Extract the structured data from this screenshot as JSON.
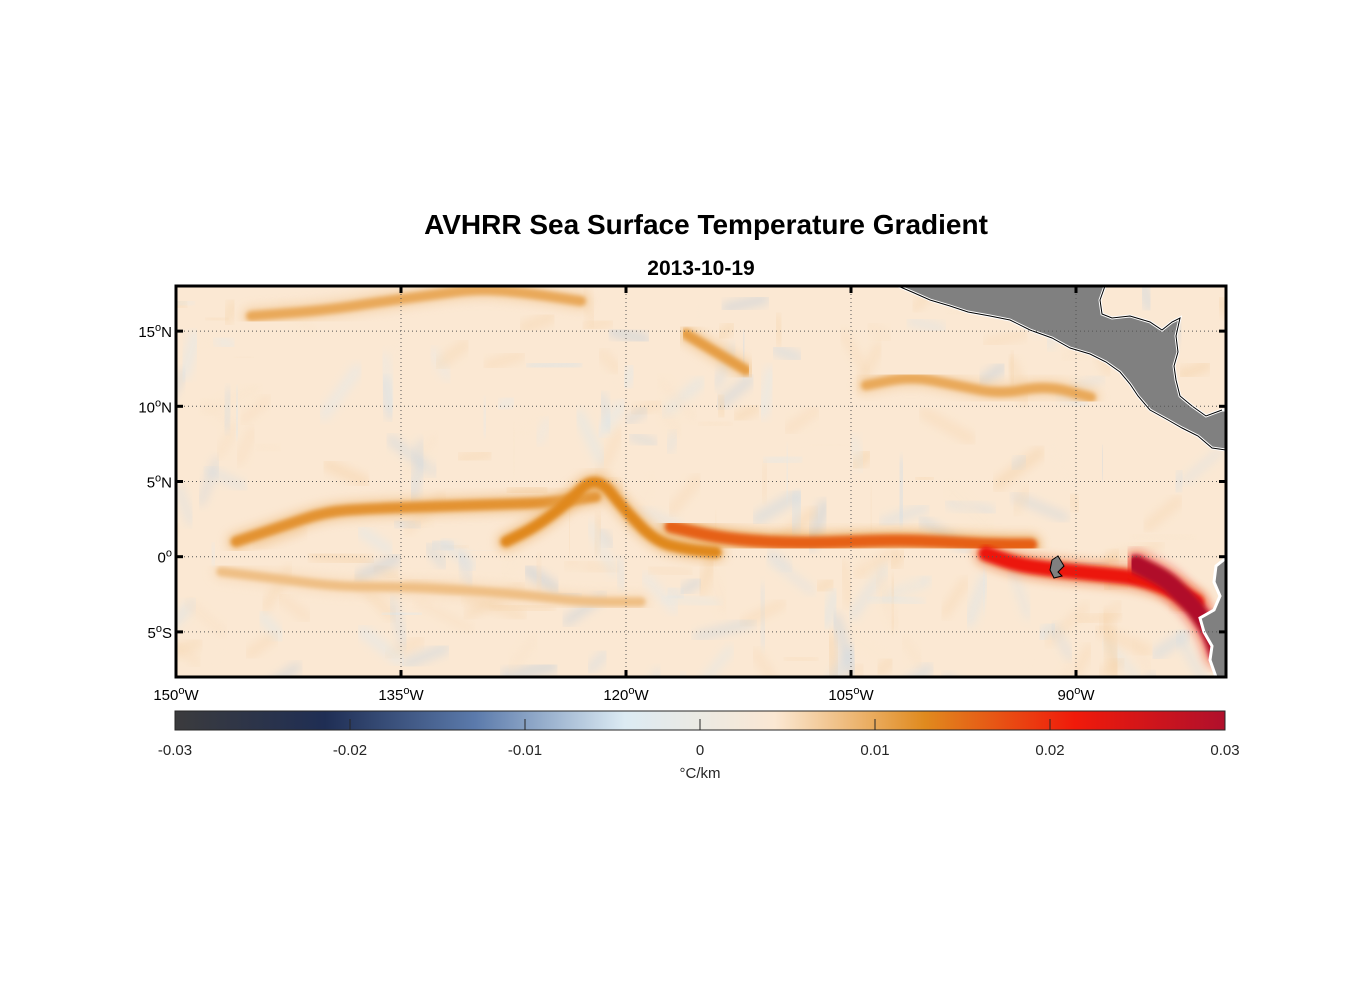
{
  "figure": {
    "title": "AVHRR Sea Surface Temperature Gradient",
    "subtitle": "2013-10-19"
  },
  "map": {
    "lon_range": [
      -150,
      -80
    ],
    "lat_range": [
      -8,
      18
    ],
    "lon_ticks": [
      {
        "value": -150,
        "deg": "150",
        "hemi": "W"
      },
      {
        "value": -135,
        "deg": "135",
        "hemi": "W"
      },
      {
        "value": -120,
        "deg": "120",
        "hemi": "W"
      },
      {
        "value": -105,
        "deg": "105",
        "hemi": "W"
      },
      {
        "value": -90,
        "deg": "90",
        "hemi": "W"
      }
    ],
    "lat_ticks": [
      {
        "value": 15,
        "deg": "15",
        "hemi": "N"
      },
      {
        "value": 10,
        "deg": "10",
        "hemi": "N"
      },
      {
        "value": 5,
        "deg": "5",
        "hemi": "N"
      },
      {
        "value": 0,
        "deg": "0",
        "hemi": ""
      },
      {
        "value": -5,
        "deg": "5",
        "hemi": "S"
      }
    ],
    "grid": true,
    "land_color": "#808080",
    "background_color": "#fbe8d3"
  },
  "colorbar": {
    "range": [
      -0.03,
      0.03
    ],
    "tick_labels": [
      "-0.03",
      "-0.02",
      "-0.01",
      "0",
      "0.01",
      "0.02",
      "0.03"
    ],
    "tick_values": [
      -0.03,
      -0.02,
      -0.01,
      0,
      0.01,
      0.02,
      0.03
    ],
    "unit": "°C/km",
    "stops": [
      "#3b3b3d",
      "#1f2e54",
      "#5b7aab",
      "#dcebf3",
      "#fbe8d3",
      "#e08a1e",
      "#f01a0a",
      "#b0102c"
    ]
  },
  "chart_data": {
    "type": "heatmap",
    "title": "AVHRR Sea Surface Temperature Gradient",
    "subtitle": "2013-10-19",
    "xlim": [
      -150,
      -80
    ],
    "ylim": [
      -8,
      18
    ],
    "clim": [
      -0.03,
      0.03
    ],
    "colorbar_label": "°C/km",
    "features": [
      {
        "lon": [
          -146,
          -143,
          -140,
          -137,
          -134,
          -131,
          -128,
          -125,
          -122
        ],
        "lat": [
          1,
          2,
          3,
          3.2,
          3.3,
          3.4,
          3.5,
          3.6,
          4
        ],
        "value": 0.012
      },
      {
        "lon": [
          -147,
          -143,
          -139,
          -135,
          -131,
          -127,
          -123,
          -119
        ],
        "lat": [
          -1,
          -1.5,
          -2,
          -2,
          -2.2,
          -2.5,
          -3,
          -3
        ],
        "value": 0.008
      },
      {
        "lon": [
          -128,
          -126,
          -124,
          -122,
          -120,
          -118,
          -116,
          -114
        ],
        "lat": [
          1,
          2,
          3.5,
          5.5,
          3,
          1,
          0.5,
          0.3
        ],
        "value": 0.013
      },
      {
        "lon": [
          -117,
          -114,
          -111,
          -108,
          -105,
          -102,
          -99,
          -96,
          -93
        ],
        "lat": [
          2,
          1.3,
          1,
          0.9,
          1,
          1.1,
          1,
          0.8,
          0.8
        ],
        "value": 0.016
      },
      {
        "lon": [
          -96,
          -94,
          -92,
          -90,
          -88,
          -86,
          -84,
          -82
        ],
        "lat": [
          0.2,
          -0.5,
          -0.8,
          -1,
          -1.2,
          -1.4,
          -2,
          -3
        ],
        "value": 0.022
      },
      {
        "lon": [
          -86,
          -84,
          -83,
          -82,
          -81,
          -80.5
        ],
        "lat": [
          -0.5,
          -1.5,
          -2.5,
          -3.5,
          -5,
          -6.5
        ],
        "value": 0.03
      },
      {
        "lon": [
          -145,
          -140,
          -136,
          -133,
          -130,
          -127,
          -123
        ],
        "lat": [
          16,
          16.4,
          17,
          17.4,
          17.8,
          17.6,
          17
        ],
        "value": 0.01
      },
      {
        "lon": [
          -116,
          -114,
          -112
        ],
        "lat": [
          14.8,
          13.6,
          12.4
        ],
        "value": 0.011
      },
      {
        "lon": [
          -104,
          -101,
          -98,
          -95,
          -92,
          -89
        ],
        "lat": [
          11.4,
          12,
          11.4,
          10.8,
          11.4,
          10.6
        ],
        "value": 0.01
      }
    ]
  }
}
